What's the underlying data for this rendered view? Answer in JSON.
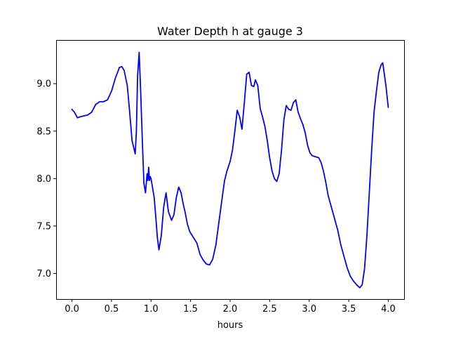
{
  "chart_data": {
    "type": "line",
    "title": "Water Depth h at gauge 3",
    "xlabel": "hours",
    "ylabel": "",
    "xlim": [
      -0.2,
      4.2
    ],
    "ylim": [
      6.73,
      9.46
    ],
    "xticks": [
      0.0,
      0.5,
      1.0,
      1.5,
      2.0,
      2.5,
      3.0,
      3.5,
      4.0
    ],
    "xtick_labels": [
      "0.0",
      "0.5",
      "1.0",
      "1.5",
      "2.0",
      "2.5",
      "3.0",
      "3.5",
      "4.0"
    ],
    "yticks": [
      7.0,
      7.5,
      8.0,
      8.5,
      9.0
    ],
    "ytick_labels": [
      "7.0",
      "7.5",
      "8.0",
      "8.5",
      "9.0"
    ],
    "grid": false,
    "series": [
      {
        "color": "#0000ff",
        "x": [
          0.0,
          0.03,
          0.07,
          0.1,
          0.15,
          0.2,
          0.25,
          0.3,
          0.35,
          0.4,
          0.45,
          0.5,
          0.55,
          0.6,
          0.63,
          0.66,
          0.7,
          0.73,
          0.76,
          0.8,
          0.815,
          0.83,
          0.85,
          0.87,
          0.89,
          0.91,
          0.93,
          0.95,
          0.96,
          0.97,
          0.98,
          0.99,
          1.0,
          1.01,
          1.02,
          1.04,
          1.06,
          1.08,
          1.1,
          1.13,
          1.16,
          1.19,
          1.22,
          1.26,
          1.29,
          1.32,
          1.35,
          1.38,
          1.41,
          1.43,
          1.46,
          1.49,
          1.52,
          1.55,
          1.58,
          1.62,
          1.66,
          1.7,
          1.74,
          1.78,
          1.82,
          1.86,
          1.9,
          1.93,
          1.96,
          2.0,
          2.03,
          2.06,
          2.09,
          2.12,
          2.15,
          2.18,
          2.21,
          2.24,
          2.27,
          2.3,
          2.32,
          2.35,
          2.38,
          2.41,
          2.44,
          2.47,
          2.5,
          2.53,
          2.56,
          2.59,
          2.62,
          2.65,
          2.68,
          2.71,
          2.74,
          2.77,
          2.8,
          2.83,
          2.86,
          2.89,
          2.92,
          2.95,
          2.98,
          3.01,
          3.04,
          3.08,
          3.12,
          3.15,
          3.18,
          3.21,
          3.24,
          3.28,
          3.32,
          3.36,
          3.4,
          3.44,
          3.48,
          3.52,
          3.56,
          3.6,
          3.64,
          3.67,
          3.7,
          3.73,
          3.76,
          3.79,
          3.82,
          3.85,
          3.88,
          3.91,
          3.93,
          3.95,
          3.97,
          4.0
        ],
        "y": [
          8.73,
          8.7,
          8.64,
          8.65,
          8.66,
          8.67,
          8.7,
          8.78,
          8.81,
          8.81,
          8.83,
          8.92,
          9.06,
          9.17,
          9.18,
          9.14,
          8.98,
          8.7,
          8.4,
          8.26,
          8.5,
          9.08,
          9.33,
          8.9,
          8.4,
          7.95,
          7.85,
          8.05,
          7.98,
          8.12,
          7.98,
          8.02,
          8.0,
          7.95,
          7.9,
          7.8,
          7.6,
          7.38,
          7.25,
          7.4,
          7.7,
          7.85,
          7.65,
          7.56,
          7.62,
          7.8,
          7.91,
          7.85,
          7.72,
          7.65,
          7.52,
          7.44,
          7.4,
          7.36,
          7.32,
          7.2,
          7.14,
          7.1,
          7.09,
          7.15,
          7.3,
          7.55,
          7.8,
          7.98,
          8.08,
          8.18,
          8.3,
          8.5,
          8.72,
          8.65,
          8.52,
          8.8,
          9.1,
          9.12,
          8.98,
          8.97,
          9.04,
          8.98,
          8.74,
          8.65,
          8.55,
          8.4,
          8.22,
          8.08,
          8.0,
          7.97,
          8.05,
          8.3,
          8.62,
          8.77,
          8.73,
          8.72,
          8.8,
          8.83,
          8.7,
          8.63,
          8.57,
          8.48,
          8.35,
          8.27,
          8.24,
          8.23,
          8.22,
          8.17,
          8.08,
          7.96,
          7.82,
          7.7,
          7.58,
          7.46,
          7.3,
          7.18,
          7.06,
          6.97,
          6.92,
          6.88,
          6.85,
          6.88,
          7.05,
          7.4,
          7.85,
          8.3,
          8.7,
          8.92,
          9.12,
          9.2,
          9.22,
          9.1,
          8.98,
          8.75
        ]
      }
    ]
  }
}
